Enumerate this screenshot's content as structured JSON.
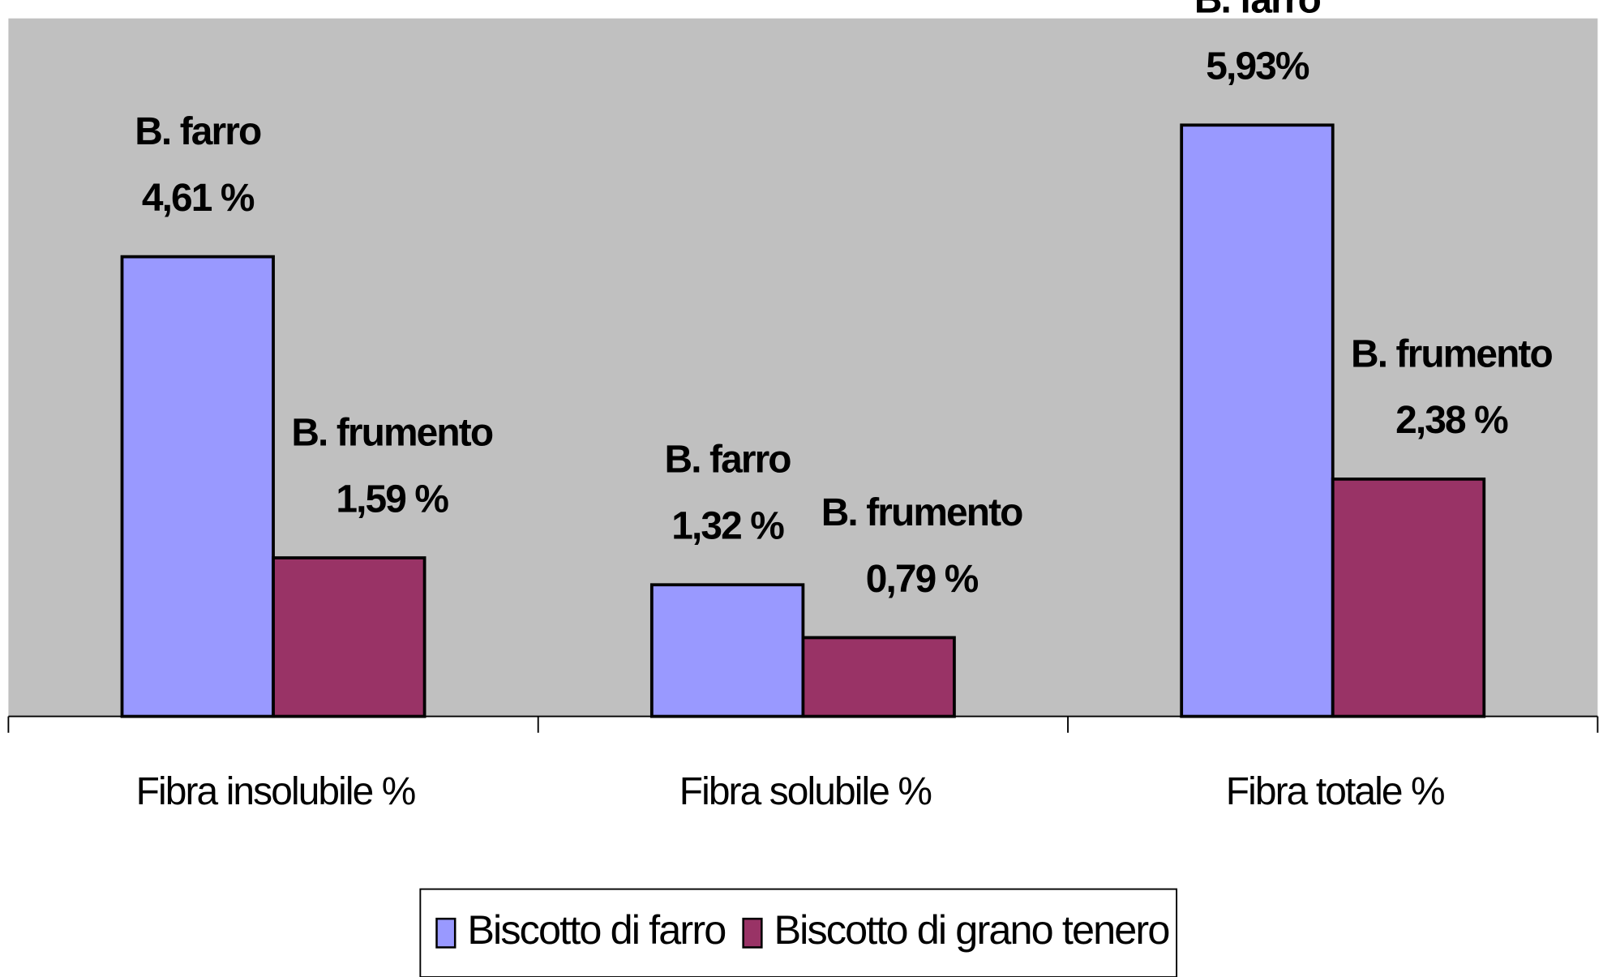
{
  "chart_data": {
    "type": "bar",
    "categories": [
      "Fibra insolubile %",
      "Fibra solubile %",
      "Fibra totale %"
    ],
    "series": [
      {
        "name": "Biscotto di farro",
        "short_name": "B. farro",
        "color": "#9999ff",
        "values": [
          4.61,
          1.32,
          5.93
        ],
        "value_labels": [
          "4,61 %",
          "1,32 %",
          "5,93%"
        ]
      },
      {
        "name": "Biscotto di grano tenero",
        "short_name": "B. frumento",
        "color": "#993366",
        "values": [
          1.59,
          0.79,
          2.38
        ],
        "value_labels": [
          "1,59 %",
          "0,79 %",
          "2,38 %"
        ]
      }
    ],
    "ylim": [
      0,
      7
    ],
    "legend": "bottom",
    "background": "#c0c0c0"
  }
}
